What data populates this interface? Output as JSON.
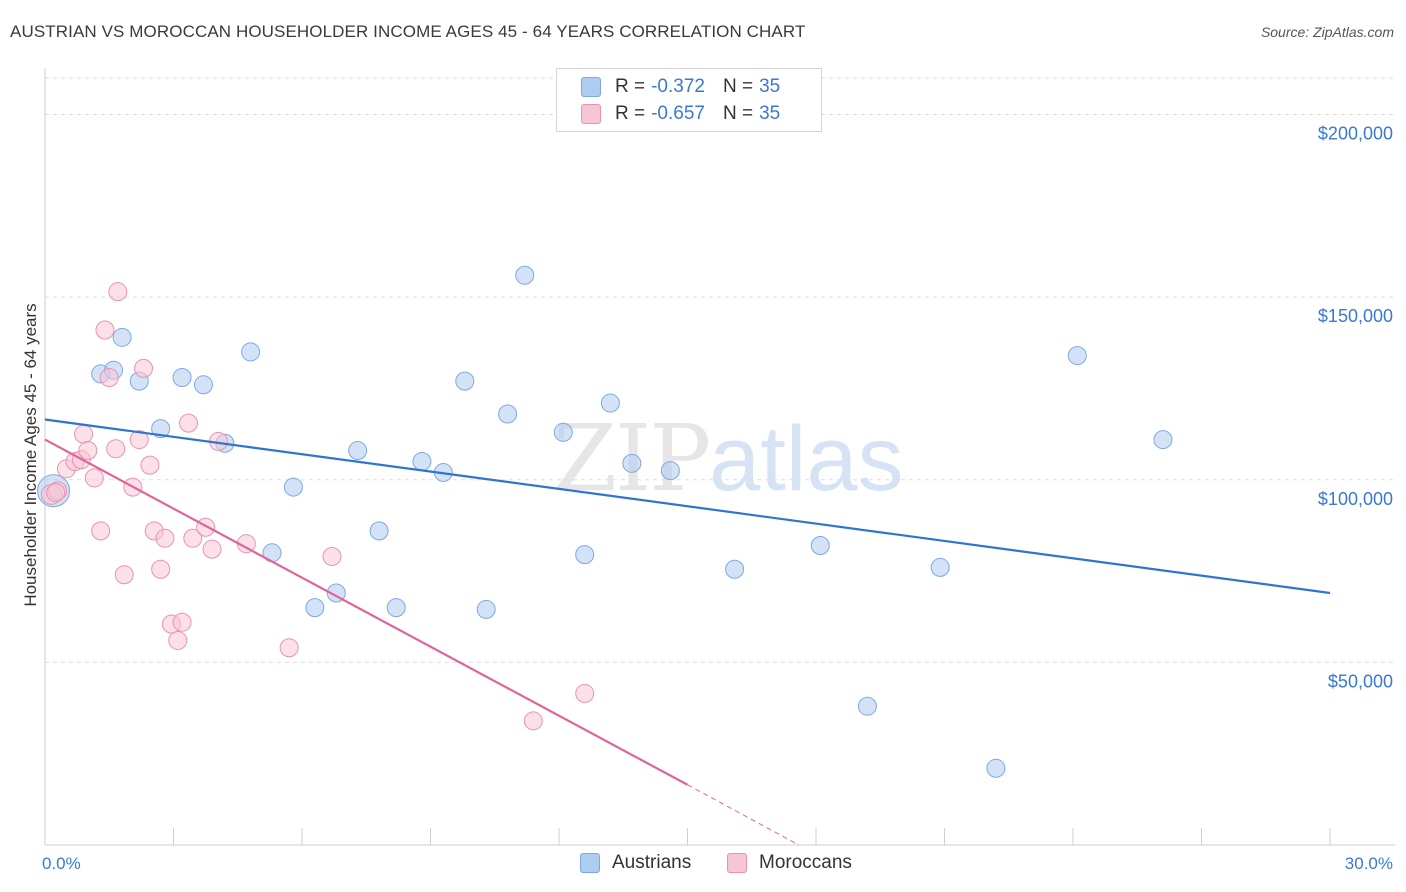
{
  "title": "AUSTRIAN VS MOROCCAN HOUSEHOLDER INCOME AGES 45 - 64 YEARS CORRELATION CHART",
  "source": "Source: ZipAtlas.com",
  "watermark": {
    "zip": "ZIP",
    "atlas": "atlas"
  },
  "legend": {
    "rows": [
      {
        "r_label": "R = ",
        "r_value": "-0.372",
        "n_label": "N = ",
        "n_value": "35",
        "color": "#aecbf1",
        "border": "#7ea9e0"
      },
      {
        "r_label": "R = ",
        "r_value": "-0.657",
        "n_label": "N = ",
        "n_value": "35",
        "color": "#f7c6d6",
        "border": "#ea93b0"
      }
    ]
  },
  "bottom_legend": [
    {
      "label": "Austrians",
      "color": "#aecbf1",
      "border": "#7ea9e0"
    },
    {
      "label": "Moroccans",
      "color": "#f7c6d6",
      "border": "#ea93b0"
    }
  ],
  "chart_data": {
    "type": "scatter",
    "title": "AUSTRIAN VS MOROCCAN HOUSEHOLDER INCOME AGES 45 - 64 YEARS CORRELATION CHART",
    "xlabel": "",
    "ylabel": "Householder Income Ages 45 - 64 years",
    "xlim": [
      0,
      30
    ],
    "ylim": [
      0,
      210000
    ],
    "x_tick_labels": [
      "0.0%",
      "30.0%"
    ],
    "y_ticks": [
      50000,
      100000,
      150000,
      200000
    ],
    "y_tick_labels": [
      "$50,000",
      "$100,000",
      "$150,000",
      "$200,000"
    ],
    "grid": true,
    "legend_position": "top-center",
    "series": [
      {
        "name": "Austrians",
        "color": "#7ea9e0",
        "fill": "#aecbf1",
        "trend_color": "#2f74d0",
        "trend": {
          "x": [
            0,
            30
          ],
          "y": [
            116500,
            69000
          ]
        },
        "points": [
          [
            0.2,
            97000,
            16
          ],
          [
            1.3,
            129000,
            9
          ],
          [
            1.8,
            139000,
            9
          ],
          [
            1.6,
            130000,
            9
          ],
          [
            2.2,
            127000,
            9
          ],
          [
            2.7,
            114000,
            9
          ],
          [
            3.2,
            128000,
            9
          ],
          [
            3.7,
            126000,
            9
          ],
          [
            4.2,
            110000,
            9
          ],
          [
            4.8,
            135000,
            9
          ],
          [
            5.3,
            80000,
            9
          ],
          [
            5.8,
            98000,
            9
          ],
          [
            6.3,
            65000,
            9
          ],
          [
            6.8,
            69000,
            9
          ],
          [
            7.3,
            108000,
            9
          ],
          [
            7.8,
            86000,
            9
          ],
          [
            8.2,
            65000,
            9
          ],
          [
            8.8,
            105000,
            9
          ],
          [
            9.3,
            102000,
            9
          ],
          [
            9.8,
            127000,
            9
          ],
          [
            10.3,
            64500,
            9
          ],
          [
            10.8,
            118000,
            9
          ],
          [
            11.2,
            156000,
            9
          ],
          [
            12.1,
            113000,
            9
          ],
          [
            12.6,
            79500,
            9
          ],
          [
            13.2,
            121000,
            9
          ],
          [
            13.7,
            104500,
            9
          ],
          [
            14.6,
            102500,
            9
          ],
          [
            16.1,
            75500,
            9
          ],
          [
            18.1,
            82000,
            9
          ],
          [
            19.2,
            38000,
            9
          ],
          [
            20.9,
            76000,
            9
          ],
          [
            22.2,
            21000,
            9
          ],
          [
            24.1,
            134000,
            9
          ],
          [
            26.1,
            111000,
            9
          ]
        ]
      },
      {
        "name": "Moroccans",
        "color": "#ea93b0",
        "fill": "#f7c6d6",
        "trend_color": "#e0649a",
        "trend": {
          "x": [
            0,
            15.0
          ],
          "y": [
            111000,
            16500
          ]
        },
        "trend_dashed": {
          "x": [
            15.0,
            17.6
          ],
          "y": [
            16500,
            0
          ]
        },
        "points": [
          [
            0.15,
            96000,
            10
          ],
          [
            0.3,
            97000,
            9
          ],
          [
            0.5,
            103000,
            9
          ],
          [
            0.7,
            105000,
            9
          ],
          [
            0.85,
            105500,
            9
          ],
          [
            0.9,
            112500,
            9
          ],
          [
            1.0,
            108000,
            9
          ],
          [
            1.15,
            100500,
            9
          ],
          [
            1.3,
            86000,
            9
          ],
          [
            1.4,
            141000,
            9
          ],
          [
            1.5,
            128000,
            9
          ],
          [
            1.65,
            108500,
            9
          ],
          [
            1.7,
            151500,
            9
          ],
          [
            1.85,
            74000,
            9
          ],
          [
            2.05,
            98000,
            9
          ],
          [
            2.2,
            111000,
            9
          ],
          [
            2.3,
            130500,
            9
          ],
          [
            2.45,
            104000,
            9
          ],
          [
            2.55,
            86000,
            9
          ],
          [
            2.7,
            75500,
            9
          ],
          [
            2.8,
            84000,
            9
          ],
          [
            2.95,
            60500,
            9
          ],
          [
            3.1,
            56000,
            9
          ],
          [
            3.2,
            61000,
            9
          ],
          [
            3.35,
            115500,
            9
          ],
          [
            3.45,
            84000,
            9
          ],
          [
            3.75,
            87000,
            9
          ],
          [
            3.9,
            81000,
            9
          ],
          [
            4.05,
            110500,
            9
          ],
          [
            4.7,
            82500,
            9
          ],
          [
            5.7,
            54000,
            9
          ],
          [
            6.7,
            79000,
            9
          ],
          [
            11.4,
            34000,
            9
          ],
          [
            12.6,
            41500,
            9
          ],
          [
            0.25,
            96500,
            9
          ]
        ]
      }
    ]
  }
}
